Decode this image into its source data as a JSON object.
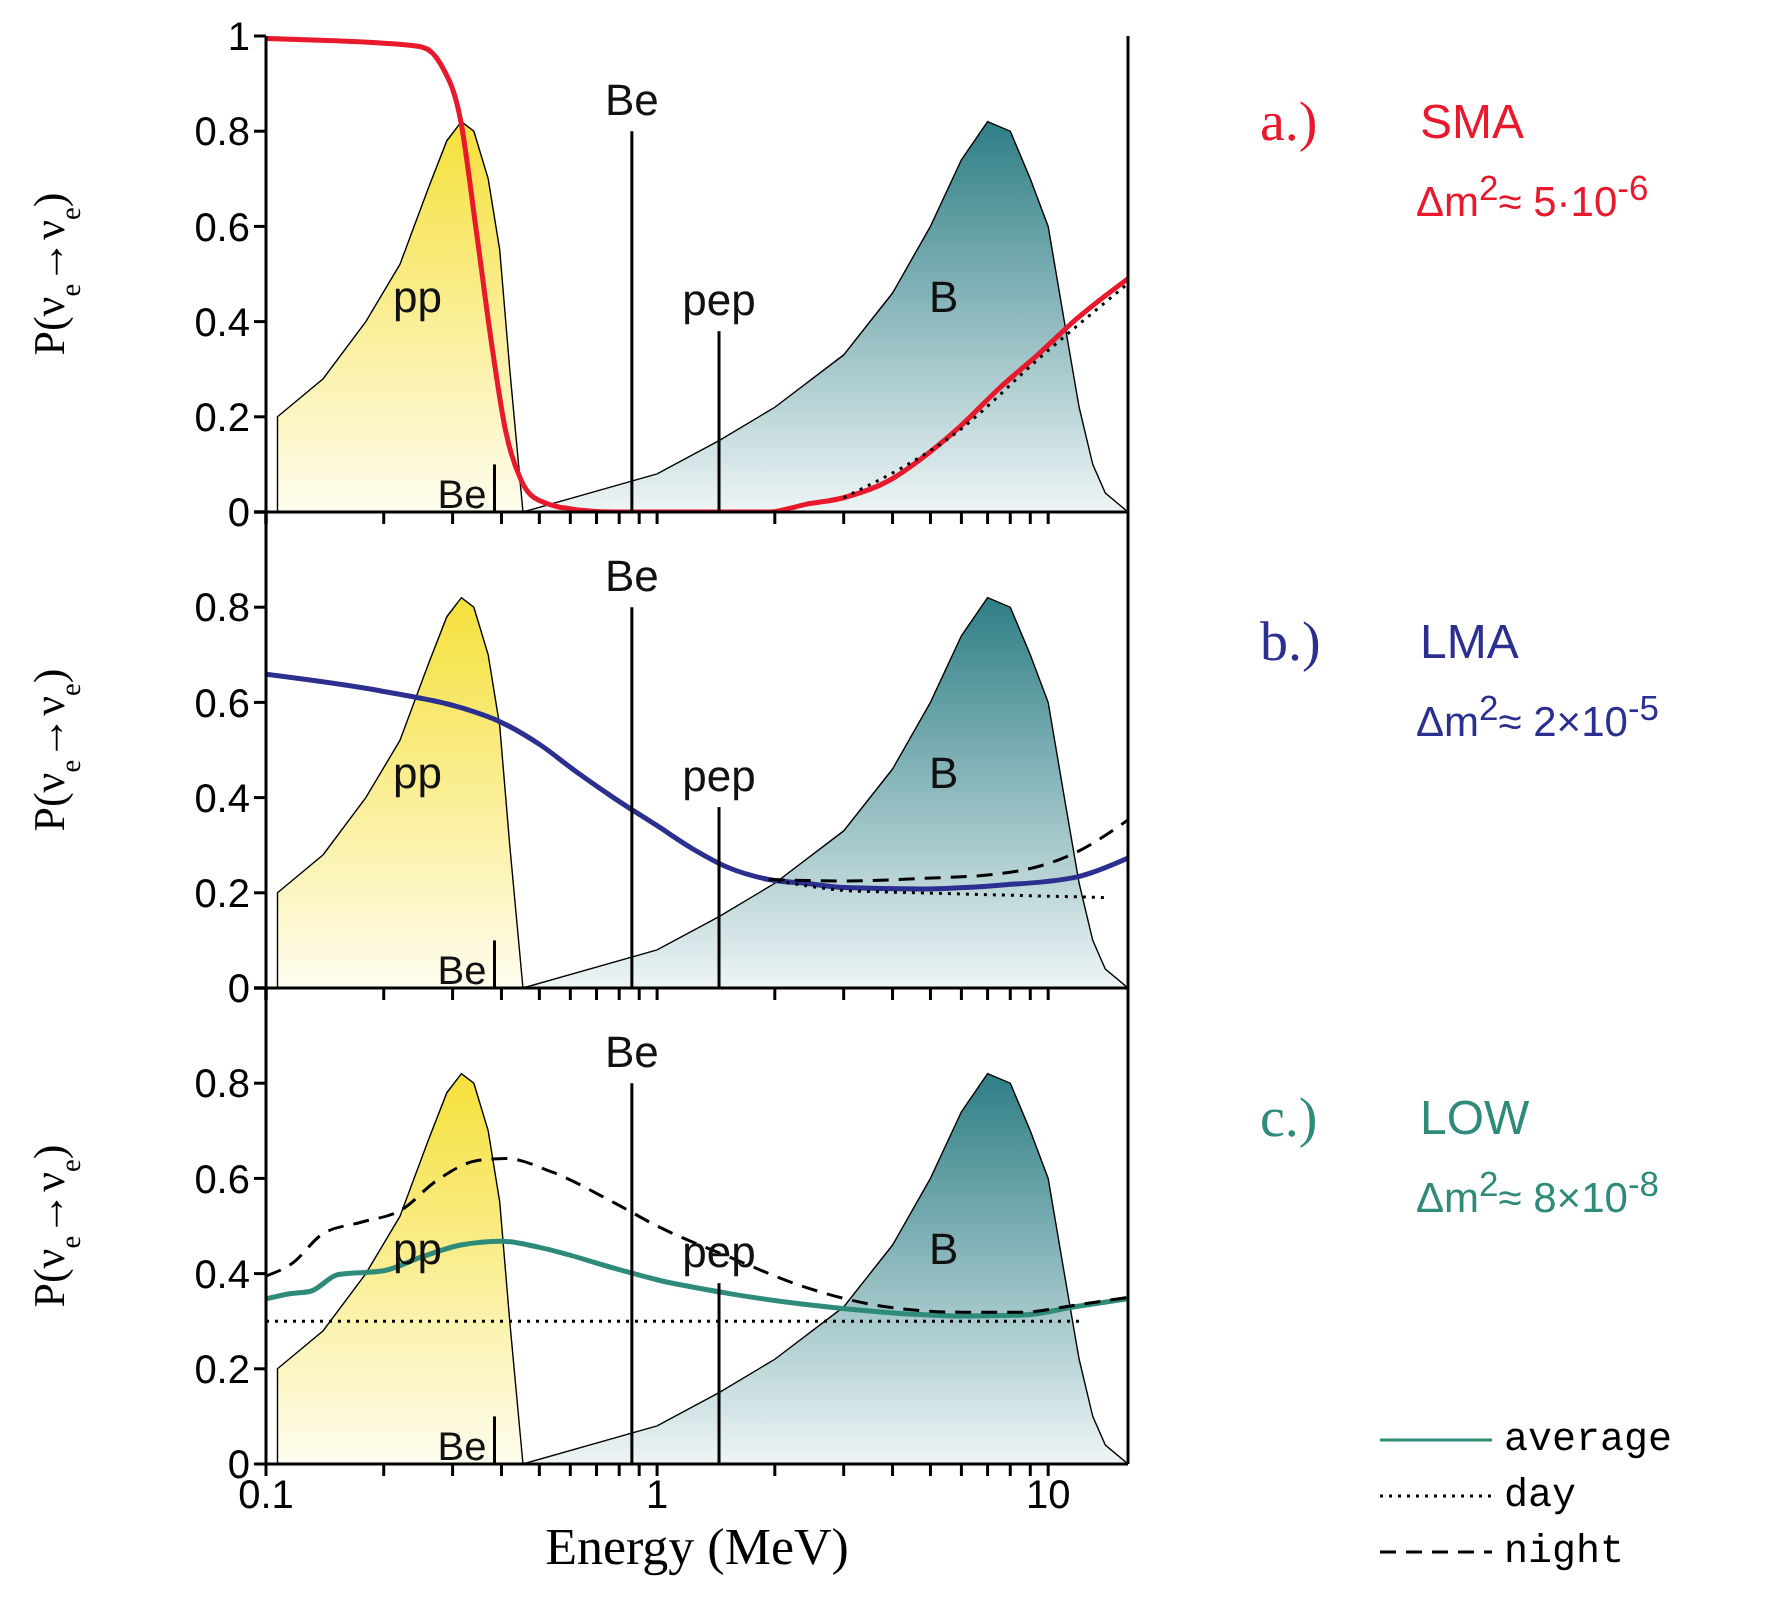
{
  "chart_data": [
    {
      "type": "line",
      "annotations": [
        "a.)",
        "SMA",
        "Δm$^{2}$≈ 5·10$^{-6}$"
      ],
      "ylabel": "P(ν$_{e}$→ν$_{e}$)",
      "log": "x",
      "xlim": [
        0.1,
        16
      ],
      "xticks": [
        0.1,
        {
          "value": 0.2,
          "label": null
        },
        {
          "value": 0.3,
          "label": null
        },
        {
          "value": 0.4,
          "label": null
        },
        {
          "value": 0.5,
          "label": null
        },
        {
          "value": 0.6,
          "label": null
        },
        {
          "value": 0.7,
          "label": null
        },
        {
          "value": 0.8,
          "label": null
        },
        {
          "value": 0.9,
          "label": null
        },
        1,
        {
          "value": 2,
          "label": null
        },
        {
          "value": 3,
          "label": null
        },
        {
          "value": 4,
          "label": null
        },
        {
          "value": 5,
          "label": null
        },
        {
          "value": 6,
          "label": null
        },
        {
          "value": 7,
          "label": null
        },
        {
          "value": 8,
          "label": null
        },
        {
          "value": 9,
          "label": null
        },
        10
      ],
      "ylim": [
        0,
        1
      ],
      "yticks": [
        0,
        0.2,
        0.4,
        0.6,
        0.8,
        1
      ],
      "tick_labels": "y",
      "series": [
        {
          "type": "line",
          "color": "#e8192c",
          "line_style": "solid",
          "x": [
            0.1,
            0.15,
            0.2,
            0.25,
            0.28,
            0.315,
            0.345,
            0.378,
            0.41,
            0.45,
            0.5,
            0.62,
            0.78,
            1.93,
            2.4,
            3,
            3.9,
            4.7,
            5.96,
            7.5,
            9.4,
            11.8,
            16
          ],
          "values": [
            0.995,
            0.99,
            0.985,
            0.977,
            0.94,
            0.82,
            0.59,
            0.35,
            0.17,
            0.065,
            0.024,
            0.005,
            0,
            0,
            0.016,
            0.03,
            0.065,
            0.11,
            0.18,
            0.26,
            0.33,
            0.405,
            0.49
          ]
        },
        {
          "type": "area",
          "name": "pp",
          "color": "#f5e03a",
          "x": [
            0.107,
            0.107,
            0.14,
            0.18,
            0.22,
            0.26,
            0.29,
            0.316,
            0.34,
            0.37,
            0.396,
            0.42,
            0.454
          ],
          "values": [
            0,
            0.2,
            0.28,
            0.4,
            0.52,
            0.68,
            0.78,
            0.82,
            0.8,
            0.7,
            0.55,
            0.3,
            0
          ]
        },
        {
          "type": "area",
          "name": "B",
          "color": "#2e7f86",
          "x": [
            0.454,
            1,
            1.44,
            2,
            3,
            4,
            5,
            6,
            7,
            8,
            9,
            10,
            11,
            12,
            13,
            14,
            16
          ],
          "values": [
            0,
            0.08,
            0.15,
            0.22,
            0.33,
            0.46,
            0.6,
            0.74,
            0.82,
            0.8,
            0.7,
            0.6,
            0.4,
            0.22,
            0.1,
            0.04,
            0
          ]
        },
        {
          "type": "line",
          "name": "Be",
          "color": "#000000",
          "x": [
            0.862,
            0.862
          ],
          "values": [
            0,
            0.8
          ]
        },
        {
          "type": "line",
          "name": "Be",
          "color": "#000000",
          "x": [
            0.384,
            0.384
          ],
          "values": [
            0,
            0.1
          ]
        },
        {
          "type": "line",
          "name": "pep",
          "color": "#000000",
          "x": [
            1.44,
            1.44
          ],
          "values": [
            0,
            0.38
          ]
        },
        {
          "type": "line",
          "color": "#000000",
          "line_style": "dotted",
          "x": [
            3,
            6,
            9.4,
            16
          ],
          "values": [
            0.03,
            0.175,
            0.32,
            0.48
          ]
        }
      ]
    },
    {
      "type": "line",
      "annotations": [
        "b.)",
        "LMA",
        "Δm$^{2}$≈ 2×10$^{-5}$"
      ],
      "ylabel": "P(ν$_{e}$→ν$_{e}$)",
      "log": "x",
      "xlim": [
        0.1,
        16
      ],
      "xticks": [
        0.1,
        {
          "value": 0.2,
          "label": null
        },
        {
          "value": 0.3,
          "label": null
        },
        {
          "value": 0.4,
          "label": null
        },
        {
          "value": 0.5,
          "label": null
        },
        {
          "value": 0.6,
          "label": null
        },
        {
          "value": 0.7,
          "label": null
        },
        {
          "value": 0.8,
          "label": null
        },
        {
          "value": 0.9,
          "label": null
        },
        1,
        {
          "value": 2,
          "label": null
        },
        {
          "value": 3,
          "label": null
        },
        {
          "value": 4,
          "label": null
        },
        {
          "value": 5,
          "label": null
        },
        {
          "value": 6,
          "label": null
        },
        {
          "value": 7,
          "label": null
        },
        {
          "value": 8,
          "label": null
        },
        {
          "value": 9,
          "label": null
        },
        10
      ],
      "ylim": [
        0,
        1
      ],
      "yticks": [
        0,
        0.2,
        0.4,
        0.6,
        0.8,
        {
          "value": 1,
          "label": null
        }
      ],
      "tick_labels": "y",
      "series": [
        {
          "type": "line",
          "color": "#2b2f8f",
          "line_style": "solid",
          "x": [
            0.1,
            0.2,
            0.315,
            0.4,
            0.5,
            0.62,
            0.78,
            1,
            1.23,
            1.53,
            1.93,
            2.4,
            3,
            4.7,
            7.5,
            11.8,
            16
          ],
          "values": [
            0.659,
            0.623,
            0.589,
            0.558,
            0.512,
            0.455,
            0.398,
            0.341,
            0.293,
            0.252,
            0.228,
            0.22,
            0.211,
            0.208,
            0.216,
            0.233,
            0.273
          ]
        },
        {
          "type": "area",
          "name": "pp",
          "color": "#f5e03a",
          "x": [
            0.107,
            0.107,
            0.14,
            0.18,
            0.22,
            0.26,
            0.29,
            0.316,
            0.34,
            0.37,
            0.396,
            0.42,
            0.454
          ],
          "values": [
            0,
            0.2,
            0.28,
            0.4,
            0.52,
            0.68,
            0.78,
            0.82,
            0.8,
            0.7,
            0.55,
            0.3,
            0
          ]
        },
        {
          "type": "area",
          "name": "B",
          "color": "#2e7f86",
          "x": [
            0.454,
            1,
            1.44,
            2,
            3,
            4,
            5,
            6,
            7,
            8,
            9,
            10,
            11,
            12,
            13,
            14,
            16
          ],
          "values": [
            0,
            0.08,
            0.15,
            0.22,
            0.33,
            0.46,
            0.6,
            0.74,
            0.82,
            0.8,
            0.7,
            0.6,
            0.4,
            0.22,
            0.1,
            0.04,
            0
          ]
        },
        {
          "type": "line",
          "name": "Be",
          "color": "#000000",
          "x": [
            0.862,
            0.862
          ],
          "values": [
            0,
            0.8
          ]
        },
        {
          "type": "line",
          "name": "Be",
          "color": "#000000",
          "x": [
            0.384,
            0.384
          ],
          "values": [
            0,
            0.1
          ]
        },
        {
          "type": "line",
          "name": "pep",
          "color": "#000000",
          "x": [
            1.44,
            1.44
          ],
          "values": [
            0,
            0.38
          ]
        },
        {
          "type": "line",
          "color": "#000000",
          "line_style": "dotted",
          "x": [
            1.93,
            2.4,
            3,
            4.7,
            14.2
          ],
          "values": [
            0.228,
            0.215,
            0.205,
            0.2,
            0.19
          ]
        },
        {
          "type": "line",
          "color": "#000000",
          "line_style": "dashed",
          "x": [
            1.93,
            2.4,
            3,
            4.7,
            7.5,
            11.8,
            16
          ],
          "values": [
            0.228,
            0.226,
            0.225,
            0.23,
            0.24,
            0.285,
            0.353
          ]
        }
      ]
    },
    {
      "type": "line",
      "annotations": [
        "c.)",
        "LOW",
        "Δm$^{2}$≈ 8×10$^{-8}$"
      ],
      "xlabel": "Energy (MeV)",
      "ylabel": "P(ν$_{e}$→ν$_{e}$)",
      "log": "x",
      "xlim": [
        0.1,
        16
      ],
      "xticks": [
        0.1,
        {
          "value": 0.2,
          "label": null
        },
        {
          "value": 0.3,
          "label": null
        },
        {
          "value": 0.4,
          "label": null
        },
        {
          "value": 0.5,
          "label": null
        },
        {
          "value": 0.6,
          "label": null
        },
        {
          "value": 0.7,
          "label": null
        },
        {
          "value": 0.8,
          "label": null
        },
        {
          "value": 0.9,
          "label": null
        },
        1,
        {
          "value": 2,
          "label": null
        },
        {
          "value": 3,
          "label": null
        },
        {
          "value": 4,
          "label": null
        },
        {
          "value": 5,
          "label": null
        },
        {
          "value": 6,
          "label": null
        },
        {
          "value": 7,
          "label": null
        },
        {
          "value": 8,
          "label": null
        },
        {
          "value": 9,
          "label": null
        },
        10
      ],
      "ylim": [
        0,
        1
      ],
      "yticks": [
        0,
        0.2,
        0.4,
        0.6,
        0.8,
        {
          "value": 1,
          "label": null
        }
      ],
      "legend": "bottom right",
      "series": [
        {
          "type": "line",
          "name": "average",
          "color": "#2e8b7a",
          "line_style": "solid",
          "x": [
            0.1,
            0.116,
            0.13,
            0.153,
            0.2,
            0.25,
            0.315,
            0.4,
            0.5,
            0.78,
            1,
            1.53,
            2.4,
            3.8,
            6,
            8.6,
            11.8,
            16
          ],
          "values": [
            0.347,
            0.358,
            0.363,
            0.398,
            0.406,
            0.435,
            0.46,
            0.468,
            0.455,
            0.411,
            0.387,
            0.358,
            0.335,
            0.319,
            0.311,
            0.313,
            0.331,
            0.347
          ]
        },
        {
          "type": "area",
          "name": "pp",
          "color": "#f5e03a",
          "x": [
            0.107,
            0.107,
            0.14,
            0.18,
            0.22,
            0.26,
            0.29,
            0.316,
            0.34,
            0.37,
            0.396,
            0.42,
            0.454
          ],
          "values": [
            0,
            0.2,
            0.28,
            0.4,
            0.52,
            0.68,
            0.78,
            0.82,
            0.8,
            0.7,
            0.55,
            0.3,
            0
          ]
        },
        {
          "type": "area",
          "name": "B",
          "color": "#2e7f86",
          "x": [
            0.454,
            1,
            1.44,
            2,
            3,
            4,
            5,
            6,
            7,
            8,
            9,
            10,
            11,
            12,
            13,
            14,
            16
          ],
          "values": [
            0,
            0.08,
            0.15,
            0.22,
            0.33,
            0.46,
            0.6,
            0.74,
            0.82,
            0.8,
            0.7,
            0.6,
            0.4,
            0.22,
            0.1,
            0.04,
            0
          ]
        },
        {
          "type": "line",
          "name": "Be",
          "color": "#000000",
          "x": [
            0.862,
            0.862
          ],
          "values": [
            0,
            0.8
          ]
        },
        {
          "type": "line",
          "name": "Be",
          "color": "#000000",
          "x": [
            0.384,
            0.384
          ],
          "values": [
            0,
            0.1
          ]
        },
        {
          "type": "line",
          "name": "pep",
          "color": "#000000",
          "x": [
            1.44,
            1.44
          ],
          "values": [
            0,
            0.38
          ]
        },
        {
          "type": "line",
          "name": "day",
          "color": "#000000",
          "line_style": "dotted",
          "x": [
            0.1,
            12
          ],
          "values": [
            0.3,
            0.3
          ]
        },
        {
          "type": "line",
          "name": "night",
          "color": "#000000",
          "line_style": "dashed",
          "x": [
            0.1,
            0.116,
            0.14,
            0.175,
            0.22,
            0.275,
            0.345,
            0.41,
            0.54,
            0.78,
            1,
            1.53,
            2.4,
            3.8,
            6,
            8.6,
            11.8,
            16
          ],
          "values": [
            0.395,
            0.42,
            0.484,
            0.508,
            0.532,
            0.597,
            0.637,
            0.642,
            0.613,
            0.548,
            0.5,
            0.435,
            0.371,
            0.331,
            0.319,
            0.319,
            0.334,
            0.35
          ]
        }
      ]
    }
  ]
}
